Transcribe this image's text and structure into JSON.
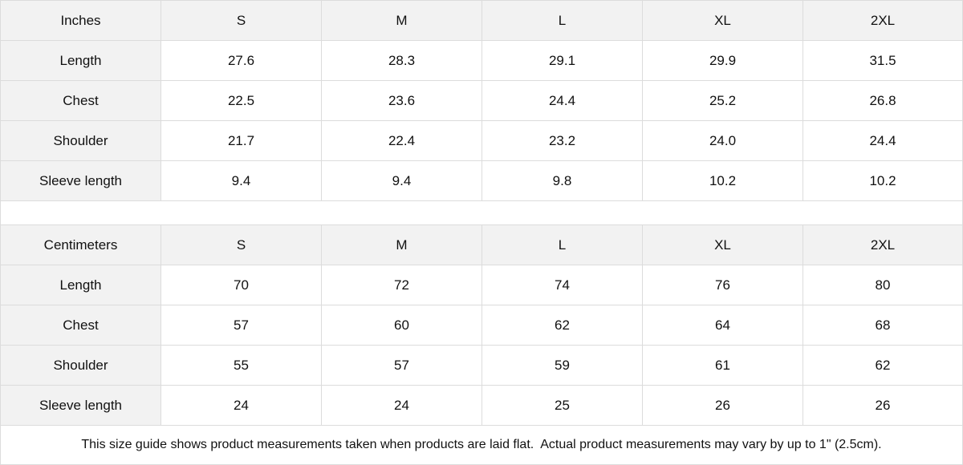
{
  "tables": [
    {
      "unit": "Inches",
      "sizes": [
        "S",
        "M",
        "L",
        "XL",
        "2XL"
      ],
      "rows": [
        {
          "label": "Length",
          "values": [
            "27.6",
            "28.3",
            "29.1",
            "29.9",
            "31.5"
          ]
        },
        {
          "label": "Chest",
          "values": [
            "22.5",
            "23.6",
            "24.4",
            "25.2",
            "26.8"
          ]
        },
        {
          "label": "Shoulder",
          "values": [
            "21.7",
            "22.4",
            "23.2",
            "24.0",
            "24.4"
          ]
        },
        {
          "label": "Sleeve length",
          "values": [
            "9.4",
            "9.4",
            "9.8",
            "10.2",
            "10.2"
          ]
        }
      ]
    },
    {
      "unit": "Centimeters",
      "sizes": [
        "S",
        "M",
        "L",
        "XL",
        "2XL"
      ],
      "rows": [
        {
          "label": "Length",
          "values": [
            "70",
            "72",
            "74",
            "76",
            "80"
          ]
        },
        {
          "label": "Chest",
          "values": [
            "57",
            "60",
            "62",
            "64",
            "68"
          ]
        },
        {
          "label": "Shoulder",
          "values": [
            "55",
            "57",
            "59",
            "61",
            "62"
          ]
        },
        {
          "label": "Sleeve length",
          "values": [
            "24",
            "24",
            "25",
            "26",
            "26"
          ]
        }
      ]
    }
  ],
  "footnote": "This size guide shows product measurements taken when products are laid flat.  Actual product measurements may vary by up to 1\" (2.5cm)."
}
